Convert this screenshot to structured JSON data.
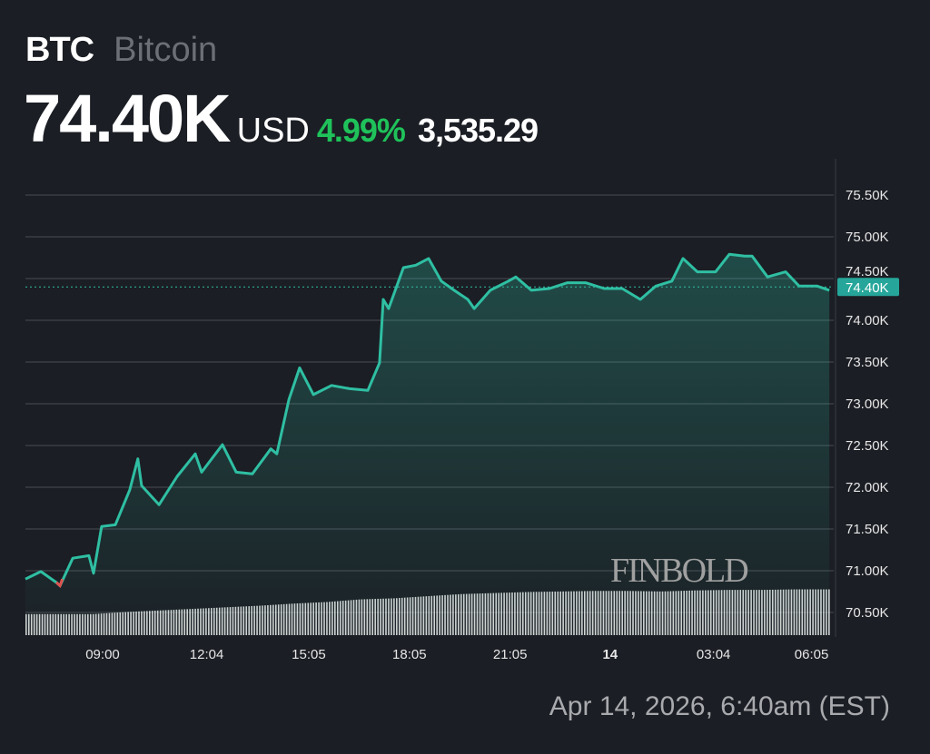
{
  "header": {
    "symbol": "BTC",
    "name": "Bitcoin",
    "price": "74.40K",
    "currency": "USD",
    "change_pct": "4.99%",
    "change_abs": "3,535.29"
  },
  "watermark": "FINBOLD",
  "timestamp": "Apr 14, 2026, 6:40am (EST)",
  "colors": {
    "line": "#2fbfa3",
    "up": "#1fc25a",
    "down": "#e0524f",
    "tag": "#26a69a",
    "background": "#1b1e24"
  },
  "chart_data": {
    "type": "area",
    "title": "BTC Bitcoin",
    "xlabel": "",
    "ylabel": "USD",
    "ylim": [
      70.2,
      75.9
    ],
    "xlim_hours": [
      0,
      24
    ],
    "grid": true,
    "y_ticks": [
      "75.50K",
      "75.00K",
      "74.50K",
      "74.00K",
      "73.50K",
      "73.00K",
      "72.50K",
      "72.00K",
      "71.50K",
      "71.00K",
      "70.50K"
    ],
    "y_tick_values": [
      75.5,
      75.0,
      74.5,
      74.0,
      73.5,
      73.0,
      72.5,
      72.0,
      71.5,
      71.0,
      70.5
    ],
    "x_ticks": [
      {
        "label": "09:00",
        "h": 2.3,
        "bold": false
      },
      {
        "label": "12:04",
        "h": 5.4,
        "bold": false
      },
      {
        "label": "15:05",
        "h": 8.44,
        "bold": false
      },
      {
        "label": "18:05",
        "h": 11.44,
        "bold": false
      },
      {
        "label": "21:05",
        "h": 14.44,
        "bold": false
      },
      {
        "label": "14",
        "h": 17.42,
        "bold": true
      },
      {
        "label": "03:04",
        "h": 20.5,
        "bold": false
      },
      {
        "label": "06:05",
        "h": 23.42,
        "bold": false
      }
    ],
    "current_price_label": "74.40K",
    "current_price": 74.4,
    "series": [
      {
        "name": "BTC/USD",
        "points": [
          [
            0.0,
            70.9
          ],
          [
            0.46,
            70.99
          ],
          [
            0.92,
            70.86
          ],
          [
            1.03,
            70.82
          ],
          [
            1.41,
            71.15
          ],
          [
            1.89,
            71.18
          ],
          [
            2.03,
            70.97
          ],
          [
            2.27,
            71.53
          ],
          [
            2.68,
            71.55
          ],
          [
            3.11,
            71.97
          ],
          [
            3.35,
            72.34
          ],
          [
            3.46,
            72.02
          ],
          [
            3.98,
            71.79
          ],
          [
            4.52,
            72.13
          ],
          [
            5.06,
            72.4
          ],
          [
            5.25,
            72.18
          ],
          [
            5.87,
            72.51
          ],
          [
            6.28,
            72.18
          ],
          [
            6.76,
            72.16
          ],
          [
            7.31,
            72.46
          ],
          [
            7.49,
            72.4
          ],
          [
            7.85,
            73.05
          ],
          [
            8.17,
            73.43
          ],
          [
            8.58,
            73.11
          ],
          [
            9.12,
            73.22
          ],
          [
            9.66,
            73.18
          ],
          [
            10.2,
            73.16
          ],
          [
            10.55,
            73.49
          ],
          [
            10.66,
            74.25
          ],
          [
            10.82,
            74.14
          ],
          [
            11.26,
            74.63
          ],
          [
            11.63,
            74.66
          ],
          [
            12.01,
            74.74
          ],
          [
            12.39,
            74.47
          ],
          [
            12.77,
            74.36
          ],
          [
            13.18,
            74.25
          ],
          [
            13.37,
            74.14
          ],
          [
            13.85,
            74.36
          ],
          [
            14.39,
            74.47
          ],
          [
            14.61,
            74.52
          ],
          [
            15.07,
            74.36
          ],
          [
            15.61,
            74.38
          ],
          [
            16.15,
            74.45
          ],
          [
            16.69,
            74.45
          ],
          [
            17.24,
            74.38
          ],
          [
            17.78,
            74.38
          ],
          [
            18.32,
            74.25
          ],
          [
            18.78,
            74.41
          ],
          [
            19.26,
            74.47
          ],
          [
            19.59,
            74.74
          ],
          [
            20.02,
            74.58
          ],
          [
            20.56,
            74.58
          ],
          [
            20.97,
            74.79
          ],
          [
            21.43,
            74.77
          ],
          [
            21.65,
            74.77
          ],
          [
            22.11,
            74.52
          ],
          [
            22.65,
            74.58
          ],
          [
            23.05,
            74.41
          ],
          [
            23.59,
            74.41
          ],
          [
            23.95,
            74.36
          ]
        ]
      }
    ],
    "volume_relative": [
      0.4,
      0.4,
      0.4,
      0.44,
      0.47,
      0.5,
      0.53,
      0.56,
      0.6,
      0.63,
      0.68,
      0.7,
      0.74,
      0.78,
      0.8,
      0.82,
      0.83,
      0.84,
      0.84,
      0.83,
      0.85,
      0.86,
      0.86,
      0.87,
      0.87
    ]
  }
}
